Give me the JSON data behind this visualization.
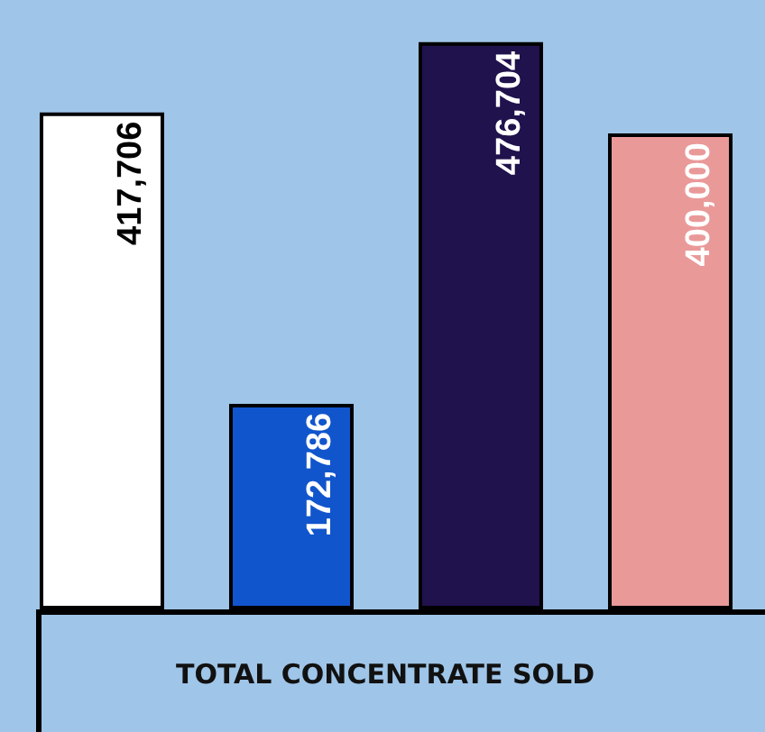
{
  "chart_data": {
    "type": "bar",
    "xlabel": "TOTAL CONCENTRATE SOLD",
    "categories": [
      null,
      null,
      null,
      null
    ],
    "values": [
      417706,
      172786,
      476704,
      400000
    ],
    "value_labels": [
      "417,706",
      "172,786",
      "476,704",
      "400,000"
    ],
    "colors": [
      "#ffffff",
      "#1155cc",
      "#20124d",
      "#ea9999"
    ]
  }
}
